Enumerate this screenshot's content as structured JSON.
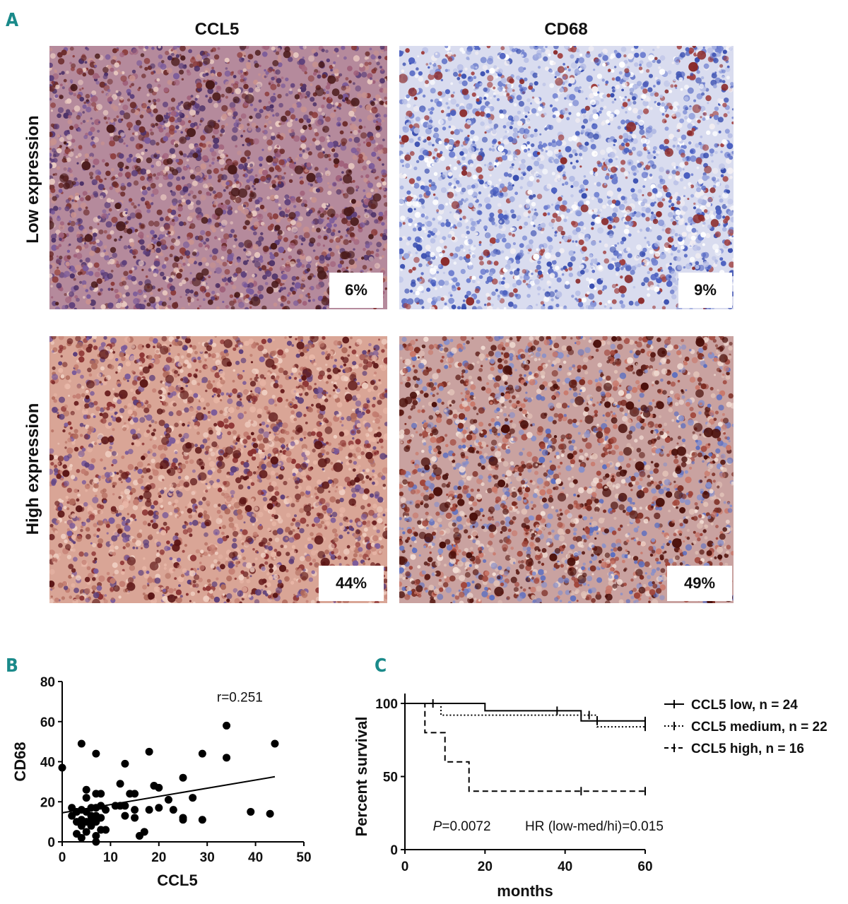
{
  "panel_a": {
    "letter": "A",
    "columns": [
      "CCL5",
      "CD68"
    ],
    "rows": [
      "Low expression",
      "High expression"
    ],
    "images": [
      {
        "stain": "CCL5",
        "level": "Low expression",
        "value": "6%",
        "palette": "purple-brown"
      },
      {
        "stain": "CD68",
        "level": "Low expression",
        "value": "9%",
        "palette": "blue-white"
      },
      {
        "stain": "CCL5",
        "level": "High expression",
        "value": "44%",
        "palette": "pink-brown"
      },
      {
        "stain": "CD68",
        "level": "High expression",
        "value": "49%",
        "palette": "brown-blue"
      }
    ]
  },
  "panel_b": {
    "letter": "B",
    "annotation": "r=0.251"
  },
  "panel_c": {
    "letter": "C",
    "p_value": "=0.0072",
    "p_symbol": "P",
    "hr": "HR (low-med/hi)=0.015"
  },
  "chart_data": [
    {
      "type": "scatter",
      "xlabel": "CCL5",
      "ylabel": "CD68",
      "xlim": [
        0,
        50
      ],
      "ylim": [
        0,
        80
      ],
      "xticks": [
        0,
        10,
        20,
        30,
        40,
        50
      ],
      "yticks": [
        0,
        20,
        40,
        60,
        80
      ],
      "points": [
        [
          0,
          37
        ],
        [
          2,
          17
        ],
        [
          2,
          13
        ],
        [
          3,
          10
        ],
        [
          3,
          15
        ],
        [
          4,
          16
        ],
        [
          4,
          11
        ],
        [
          4,
          49
        ],
        [
          4,
          8
        ],
        [
          3,
          4
        ],
        [
          4,
          2
        ],
        [
          5,
          26
        ],
        [
          5,
          22
        ],
        [
          5,
          15
        ],
        [
          5,
          10
        ],
        [
          5,
          5
        ],
        [
          6,
          17
        ],
        [
          6,
          13
        ],
        [
          6,
          11
        ],
        [
          6,
          8
        ],
        [
          7,
          44
        ],
        [
          7,
          24
        ],
        [
          7,
          17
        ],
        [
          7,
          13
        ],
        [
          7,
          10
        ],
        [
          7,
          3
        ],
        [
          7,
          0
        ],
        [
          8,
          24
        ],
        [
          8,
          18
        ],
        [
          8,
          12
        ],
        [
          8,
          6
        ],
        [
          9,
          16
        ],
        [
          9,
          6
        ],
        [
          11,
          18
        ],
        [
          12,
          18
        ],
        [
          12,
          29
        ],
        [
          13,
          39
        ],
        [
          13,
          18
        ],
        [
          13,
          13
        ],
        [
          14,
          24
        ],
        [
          15,
          24
        ],
        [
          15,
          16
        ],
        [
          15,
          12
        ],
        [
          16,
          3
        ],
        [
          17,
          5
        ],
        [
          18,
          45
        ],
        [
          18,
          16
        ],
        [
          19,
          28
        ],
        [
          20,
          27
        ],
        [
          20,
          17
        ],
        [
          22,
          21
        ],
        [
          23,
          16
        ],
        [
          25,
          32
        ],
        [
          25,
          12
        ],
        [
          25,
          11
        ],
        [
          27,
          22
        ],
        [
          29,
          44
        ],
        [
          29,
          11
        ],
        [
          34,
          58
        ],
        [
          34,
          42
        ],
        [
          39,
          15
        ],
        [
          43,
          14
        ],
        [
          44,
          49
        ]
      ],
      "trendline": {
        "x": [
          0,
          44
        ],
        "y": [
          14.5,
          32.5
        ]
      }
    },
    {
      "type": "line",
      "xlabel": "months",
      "ylabel": "Percent survival",
      "xlim": [
        0,
        60
      ],
      "ylim": [
        0,
        100
      ],
      "xticks": [
        0,
        20,
        40,
        60
      ],
      "yticks": [
        0,
        50,
        100
      ],
      "legend_position": "right",
      "series": [
        {
          "name": "CCL5 low, n = 24",
          "style": "solid",
          "steps": [
            [
              0,
              100
            ],
            [
              20,
              100
            ],
            [
              20,
              95
            ],
            [
              44,
              95
            ],
            [
              44,
              88
            ],
            [
              60,
              88
            ]
          ],
          "censors": [
            [
              38,
              95
            ],
            [
              48,
              88
            ],
            [
              60,
              88
            ]
          ]
        },
        {
          "name": "CCL5 medium, n = 22",
          "style": "dotted",
          "steps": [
            [
              0,
              100
            ],
            [
              9,
              100
            ],
            [
              9,
              92
            ],
            [
              48,
              92
            ],
            [
              48,
              84
            ],
            [
              60,
              84
            ]
          ],
          "censors": [
            [
              7,
              100
            ],
            [
              46,
              92
            ],
            [
              60,
              84
            ]
          ]
        },
        {
          "name": "CCL5 high, n = 16",
          "style": "dashed",
          "steps": [
            [
              0,
              100
            ],
            [
              5,
              100
            ],
            [
              5,
              80
            ],
            [
              10,
              80
            ],
            [
              10,
              60
            ],
            [
              16,
              60
            ],
            [
              16,
              40
            ],
            [
              60,
              40
            ]
          ],
          "censors": [
            [
              44,
              40
            ],
            [
              60,
              40
            ]
          ]
        }
      ]
    }
  ]
}
